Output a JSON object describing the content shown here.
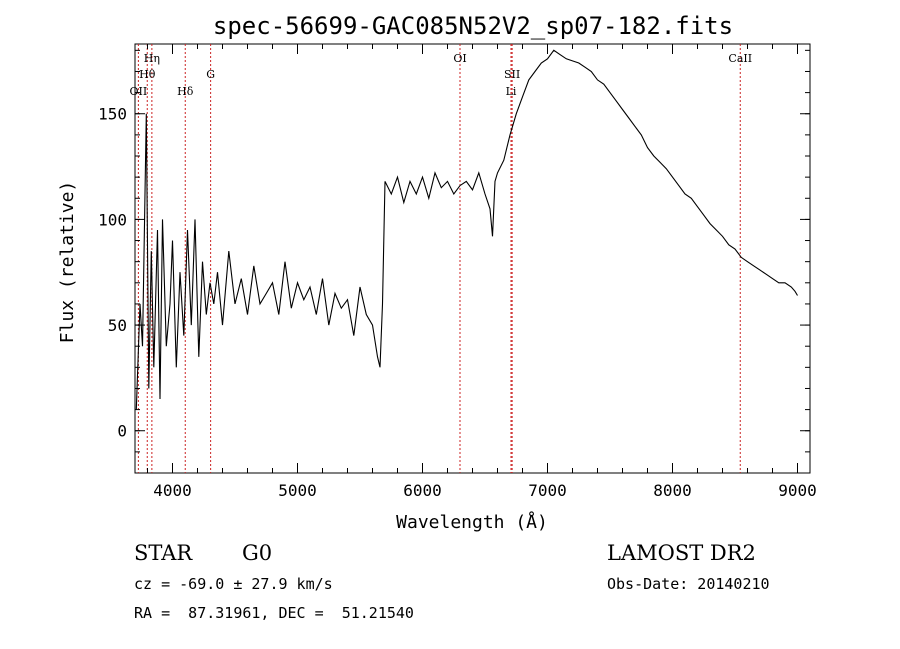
{
  "chart_data": {
    "type": "line",
    "title": "spec-56699-GAC085N52V2_sp07-182.fits",
    "xlabel": "Wavelength (Å)",
    "ylabel": "Flux (relative)",
    "xlim": [
      3700,
      9100
    ],
    "ylim": [
      -20,
      183
    ],
    "xticks": [
      4000,
      5000,
      6000,
      7000,
      8000,
      9000
    ],
    "yticks": [
      0,
      50,
      100,
      150
    ],
    "grid": false,
    "line_color": "#000000",
    "marker_color": "#cc2222",
    "lines": [
      {
        "label": "OII",
        "wavelength": 3727
      },
      {
        "label": "Hη",
        "wavelength": 3835
      },
      {
        "label": "Hθ",
        "wavelength": 3798
      },
      {
        "label": "Hδ",
        "wavelength": 4102
      },
      {
        "label": "G",
        "wavelength": 4305
      },
      {
        "label": "OI",
        "wavelength": 6300
      },
      {
        "label": "SII",
        "wavelength": 6717
      },
      {
        "label": "Li",
        "wavelength": 6708
      },
      {
        "label": "CaII",
        "wavelength": 8542
      }
    ],
    "series": [
      {
        "x": [
          3710,
          3740,
          3760,
          3790,
          3810,
          3830,
          3850,
          3880,
          3900,
          3920,
          3950,
          3980,
          4000,
          4030,
          4060,
          4090,
          4120,
          4150,
          4180,
          4210,
          4240,
          4270,
          4300,
          4330,
          4360,
          4400,
          4450,
          4500,
          4550,
          4600,
          4650,
          4700,
          4750,
          4800,
          4850,
          4900,
          4950,
          5000,
          5050,
          5100,
          5150,
          5200,
          5250,
          5300,
          5350,
          5400,
          5450,
          5500,
          5550,
          5600,
          5640,
          5660,
          5680,
          5700,
          5750,
          5800,
          5850,
          5900,
          5950,
          6000,
          6050,
          6100,
          6150,
          6200,
          6250,
          6300,
          6350,
          6400,
          6450,
          6500,
          6540,
          6560,
          6580,
          6600,
          6650,
          6700,
          6750,
          6800,
          6850,
          6900,
          6950,
          7000,
          7050,
          7100,
          7150,
          7200,
          7250,
          7300,
          7350,
          7400,
          7450,
          7500,
          7550,
          7600,
          7650,
          7700,
          7750,
          7800,
          7850,
          7900,
          7950,
          8000,
          8050,
          8100,
          8150,
          8200,
          8250,
          8300,
          8350,
          8400,
          8450,
          8500,
          8550,
          8600,
          8650,
          8700,
          8750,
          8800,
          8850,
          8900,
          8950,
          8980,
          9000
        ],
        "y": [
          10,
          60,
          40,
          150,
          20,
          85,
          30,
          95,
          15,
          100,
          40,
          60,
          90,
          30,
          75,
          45,
          95,
          50,
          100,
          35,
          80,
          55,
          70,
          60,
          75,
          50,
          85,
          60,
          72,
          55,
          78,
          60,
          65,
          70,
          55,
          80,
          58,
          70,
          62,
          68,
          55,
          72,
          50,
          65,
          58,
          62,
          45,
          68,
          55,
          50,
          35,
          30,
          60,
          118,
          112,
          120,
          108,
          118,
          112,
          120,
          110,
          122,
          115,
          118,
          112,
          116,
          118,
          114,
          122,
          112,
          105,
          92,
          118,
          122,
          128,
          140,
          150,
          158,
          166,
          170,
          174,
          176,
          180,
          178,
          176,
          175,
          174,
          172,
          170,
          166,
          164,
          160,
          156,
          152,
          148,
          144,
          140,
          134,
          130,
          127,
          124,
          120,
          116,
          112,
          110,
          106,
          102,
          98,
          95,
          92,
          88,
          86,
          82,
          80,
          78,
          76,
          74,
          72,
          70,
          70,
          68,
          66,
          64
        ]
      }
    ]
  },
  "footer": {
    "object_class": "STAR",
    "subclass": "G0",
    "survey": "LAMOST DR2",
    "redshift": "cz = -69.0 ± 27.9 km/s",
    "obs_date": "Obs-Date: 20140210",
    "coords": "RA =  87.31961, DEC =  51.21540"
  }
}
